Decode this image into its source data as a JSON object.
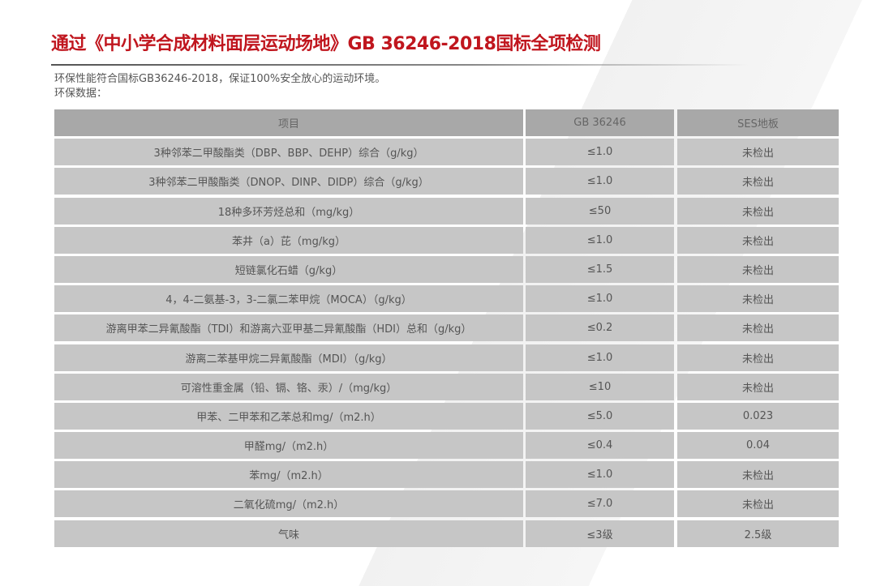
{
  "title": "通过《中小学合成材料面层运动场地》GB 36246-2018国标全项检测",
  "intro": [
    "环保性能符合国标GB36246-2018，保证100%安全放心的运动环境。",
    "环保数据："
  ],
  "table": {
    "headers": [
      "项目",
      "GB 36246",
      "SES地板"
    ],
    "rows": [
      [
        "3种邻苯二甲酸酯类（DBP、BBP、DEHP）综合（g/kg）",
        "≤1.0",
        "未检出"
      ],
      [
        "3种邻苯二甲酸酯类（DNOP、DINP、DIDP）综合（g/kg）",
        "≤1.0",
        "未检出"
      ],
      [
        "18种多环芳烃总和（mg/kg）",
        "≤50",
        "未检出"
      ],
      [
        "苯井（a）芘（mg/kg）",
        "≤1.0",
        "未检出"
      ],
      [
        "短链氯化石蜡（g/kg）",
        "≤1.5",
        "未检出"
      ],
      [
        "4，4-二氨基-3，3-二氯二苯甲烷（MOCA）（g/kg）",
        "≤1.0",
        "未检出"
      ],
      [
        "游离甲苯二异氰酸酯（TDI）和游离六亚甲基二异氰酸酯（HDI）总和（g/kg）",
        "≤0.2",
        "未检出"
      ],
      [
        "游离二苯基甲烷二异氰酸酯（MDI）（g/kg）",
        "≤1.0",
        "未检出"
      ],
      [
        "可溶性重金属（铅、镉、铬、汞）/（mg/kg）",
        "≤10",
        "未检出"
      ],
      [
        "甲苯、二甲苯和乙苯总和mg/（m2.h）",
        "≤5.0",
        "0.023"
      ],
      [
        "甲醛mg/（m2.h）",
        "≤0.4",
        "0.04"
      ],
      [
        "苯mg/（m2.h）",
        "≤1.0",
        "未检出"
      ],
      [
        "二氧化硫mg/（m2.h）",
        "≤7.0",
        "未检出"
      ],
      [
        "气味",
        "≤3级",
        "2.5级"
      ]
    ]
  },
  "colors": {
    "title": "#c0161e",
    "header_bg": "#a8a8a8",
    "row_bg": "#c6c6c6"
  }
}
